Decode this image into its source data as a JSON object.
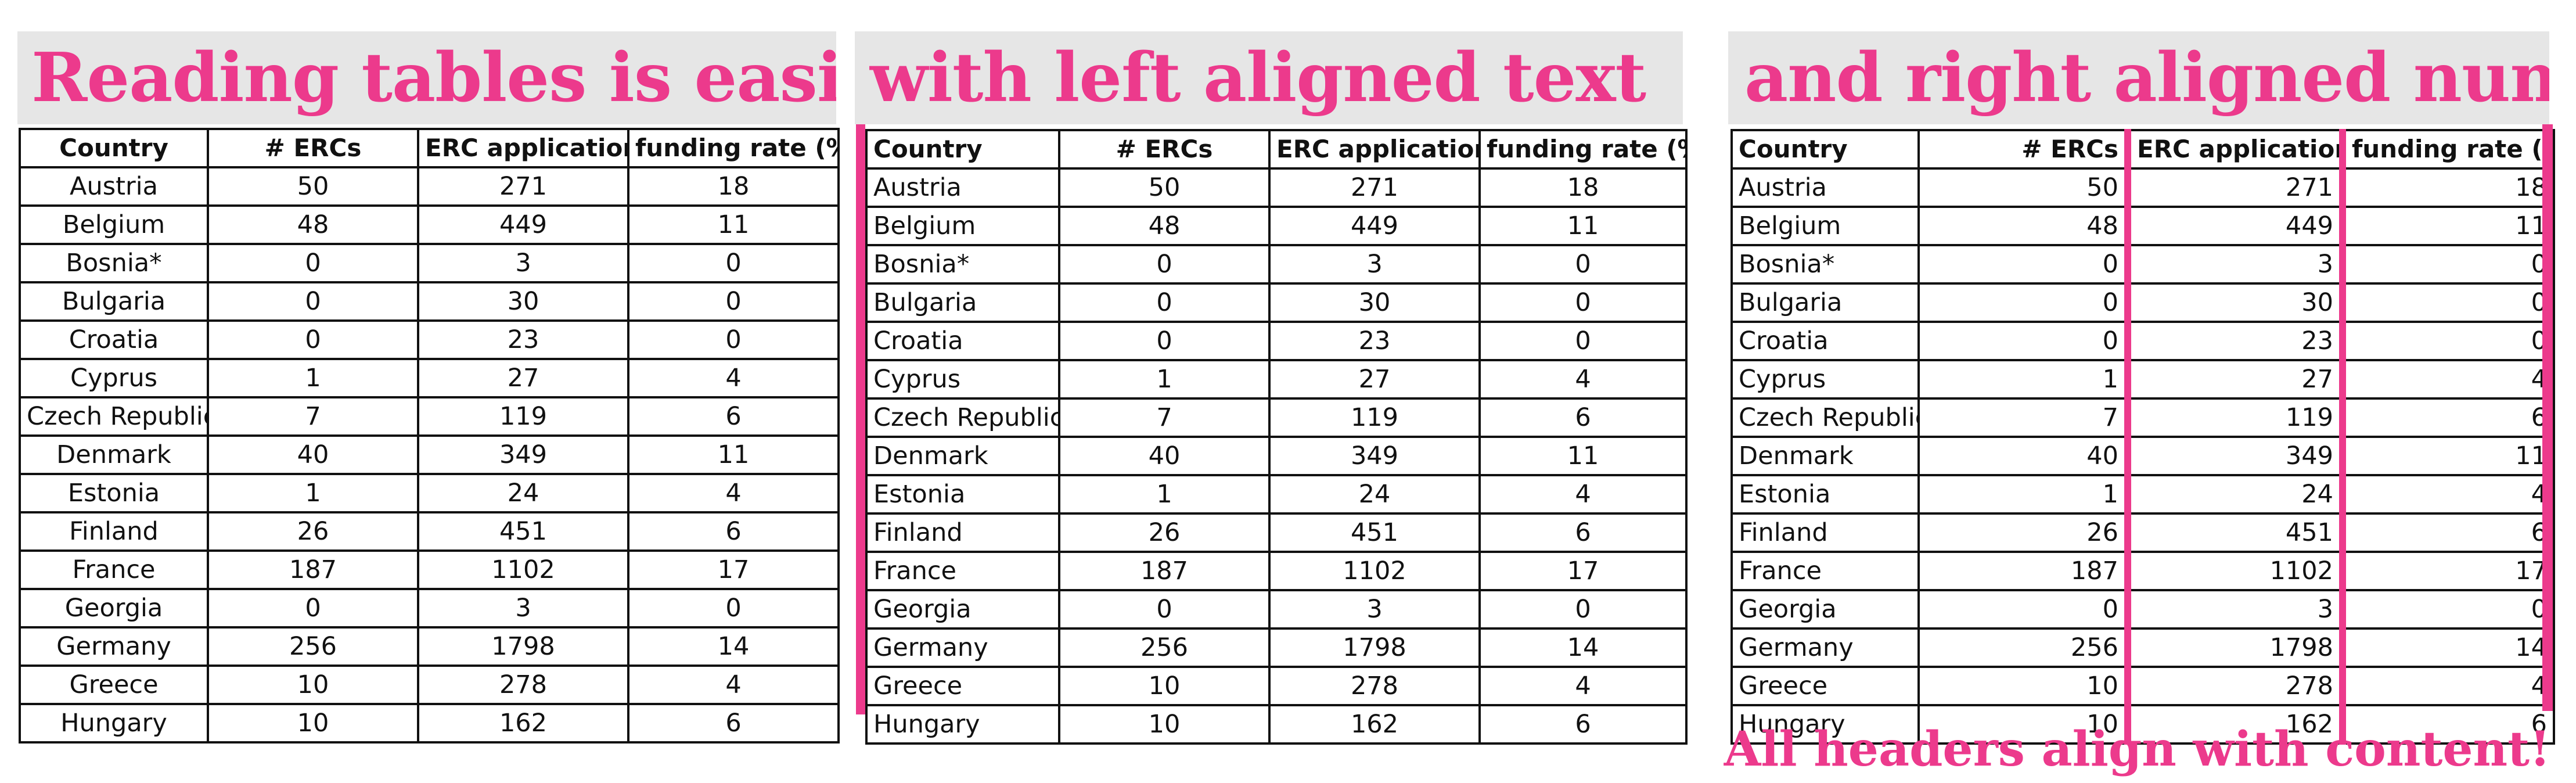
{
  "headlines": {
    "left": "Reading tables is easiest",
    "middle": "with left aligned text",
    "right": "and right aligned numbers."
  },
  "footnote": "All headers align with content!",
  "accent_color": "#ec3a8c",
  "table": {
    "headers": [
      "Country",
      "# ERCs",
      "ERC applications",
      "funding rate (%)"
    ],
    "rows": [
      [
        "Austria",
        "50",
        "271",
        "18"
      ],
      [
        "Belgium",
        "48",
        "449",
        "11"
      ],
      [
        "Bosnia*",
        "0",
        "3",
        "0"
      ],
      [
        "Bulgaria",
        "0",
        "30",
        "0"
      ],
      [
        "Croatia",
        "0",
        "23",
        "0"
      ],
      [
        "Cyprus",
        "1",
        "27",
        "4"
      ],
      [
        "Czech Republic",
        "7",
        "119",
        "6"
      ],
      [
        "Denmark",
        "40",
        "349",
        "11"
      ],
      [
        "Estonia",
        "1",
        "24",
        "4"
      ],
      [
        "Finland",
        "26",
        "451",
        "6"
      ],
      [
        "France",
        "187",
        "1102",
        "17"
      ],
      [
        "Georgia",
        "0",
        "3",
        "0"
      ],
      [
        "Germany",
        "256",
        "1798",
        "14"
      ],
      [
        "Greece",
        "10",
        "278",
        "4"
      ],
      [
        "Hungary",
        "10",
        "162",
        "6"
      ]
    ]
  }
}
